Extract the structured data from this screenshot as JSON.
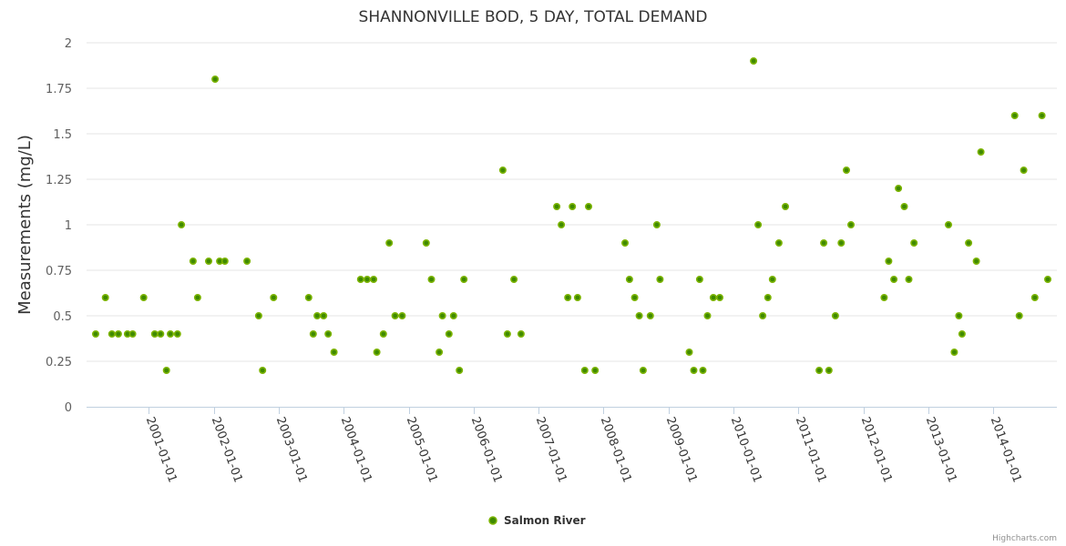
{
  "chart_data": {
    "type": "scatter",
    "title": "SHANNONVILLE BOD, 5 DAY, TOTAL DEMAND",
    "xlabel": "",
    "ylabel": "Measurements (mg/L)",
    "x_type": "datetime (decimal year)",
    "xlim": [
      2000.04,
      2014.98
    ],
    "ylim": [
      0,
      2
    ],
    "yticks": [
      {
        "value": 0,
        "label": "0"
      },
      {
        "value": 0.25,
        "label": "0.25"
      },
      {
        "value": 0.5,
        "label": "0.5"
      },
      {
        "value": 0.75,
        "label": "0.75"
      },
      {
        "value": 1,
        "label": "1"
      },
      {
        "value": 1.25,
        "label": "1.25"
      },
      {
        "value": 1.5,
        "label": "1.5"
      },
      {
        "value": 1.75,
        "label": "1.75"
      },
      {
        "value": 2,
        "label": "2"
      }
    ],
    "xticks": [
      {
        "value": 2001,
        "label": "2001-01-01"
      },
      {
        "value": 2002,
        "label": "2002-01-01"
      },
      {
        "value": 2003,
        "label": "2003-01-01"
      },
      {
        "value": 2004,
        "label": "2004-01-01"
      },
      {
        "value": 2005,
        "label": "2005-01-01"
      },
      {
        "value": 2006,
        "label": "2006-01-01"
      },
      {
        "value": 2007,
        "label": "2007-01-01"
      },
      {
        "value": 2008,
        "label": "2008-01-01"
      },
      {
        "value": 2009,
        "label": "2009-01-01"
      },
      {
        "value": 2010,
        "label": "2010-01-01"
      },
      {
        "value": 2011,
        "label": "2011-01-01"
      },
      {
        "value": 2012,
        "label": "2012-01-01"
      },
      {
        "value": 2013,
        "label": "2013-01-01"
      },
      {
        "value": 2014,
        "label": "2014-01-01"
      }
    ],
    "grid": "horizontal",
    "legend_position": "bottom-center",
    "series": [
      {
        "name": "Salmon River",
        "color": "#7cb400",
        "center_color": "#3f8a00",
        "points": [
          [
            2000.18,
            0.4
          ],
          [
            2000.33,
            0.6
          ],
          [
            2000.43,
            0.4
          ],
          [
            2000.53,
            0.4
          ],
          [
            2000.67,
            0.4
          ],
          [
            2000.75,
            0.4
          ],
          [
            2000.92,
            0.6
          ],
          [
            2001.09,
            0.4
          ],
          [
            2001.18,
            0.4
          ],
          [
            2001.27,
            0.2
          ],
          [
            2001.33,
            0.4
          ],
          [
            2001.44,
            0.4
          ],
          [
            2001.5,
            1.0
          ],
          [
            2001.68,
            0.8
          ],
          [
            2001.75,
            0.6
          ],
          [
            2001.92,
            0.8
          ],
          [
            2002.02,
            1.8
          ],
          [
            2002.09,
            0.8
          ],
          [
            2002.17,
            0.8
          ],
          [
            2002.51,
            0.8
          ],
          [
            2002.69,
            0.5
          ],
          [
            2002.75,
            0.2
          ],
          [
            2002.92,
            0.6
          ],
          [
            2003.46,
            0.6
          ],
          [
            2003.53,
            0.4
          ],
          [
            2003.59,
            0.5
          ],
          [
            2003.69,
            0.5
          ],
          [
            2003.76,
            0.4
          ],
          [
            2003.85,
            0.3
          ],
          [
            2004.26,
            0.7
          ],
          [
            2004.36,
            0.7
          ],
          [
            2004.46,
            0.7
          ],
          [
            2004.51,
            0.3
          ],
          [
            2004.61,
            0.4
          ],
          [
            2004.7,
            0.9
          ],
          [
            2004.79,
            0.5
          ],
          [
            2004.9,
            0.5
          ],
          [
            2005.27,
            0.9
          ],
          [
            2005.35,
            0.7
          ],
          [
            2005.47,
            0.3
          ],
          [
            2005.52,
            0.5
          ],
          [
            2005.62,
            0.4
          ],
          [
            2005.69,
            0.5
          ],
          [
            2005.78,
            0.2
          ],
          [
            2005.85,
            0.7
          ],
          [
            2006.45,
            1.3
          ],
          [
            2006.52,
            0.4
          ],
          [
            2006.62,
            0.7
          ],
          [
            2006.73,
            0.4
          ],
          [
            2007.28,
            1.1
          ],
          [
            2007.35,
            1.0
          ],
          [
            2007.45,
            0.6
          ],
          [
            2007.52,
            1.1
          ],
          [
            2007.6,
            0.6
          ],
          [
            2007.71,
            0.2
          ],
          [
            2007.77,
            1.1
          ],
          [
            2007.87,
            0.2
          ],
          [
            2008.33,
            0.9
          ],
          [
            2008.4,
            0.7
          ],
          [
            2008.48,
            0.6
          ],
          [
            2008.55,
            0.5
          ],
          [
            2008.61,
            0.2
          ],
          [
            2008.72,
            0.5
          ],
          [
            2008.82,
            1.0
          ],
          [
            2008.87,
            0.7
          ],
          [
            2009.32,
            0.3
          ],
          [
            2009.39,
            0.2
          ],
          [
            2009.48,
            0.7
          ],
          [
            2009.53,
            0.2
          ],
          [
            2009.6,
            0.5
          ],
          [
            2009.69,
            0.6
          ],
          [
            2009.79,
            0.6
          ],
          [
            2010.31,
            1.9
          ],
          [
            2010.38,
            1.0
          ],
          [
            2010.45,
            0.5
          ],
          [
            2010.53,
            0.6
          ],
          [
            2010.6,
            0.7
          ],
          [
            2010.7,
            0.9
          ],
          [
            2010.8,
            1.1
          ],
          [
            2011.32,
            0.2
          ],
          [
            2011.39,
            0.9
          ],
          [
            2011.47,
            0.2
          ],
          [
            2011.57,
            0.5
          ],
          [
            2011.66,
            0.9
          ],
          [
            2011.74,
            1.3
          ],
          [
            2011.81,
            1.0
          ],
          [
            2012.32,
            0.6
          ],
          [
            2012.39,
            0.8
          ],
          [
            2012.47,
            0.7
          ],
          [
            2012.54,
            1.2
          ],
          [
            2012.63,
            1.1
          ],
          [
            2012.7,
            0.7
          ],
          [
            2012.78,
            0.9
          ],
          [
            2013.31,
            1.0
          ],
          [
            2013.4,
            0.3
          ],
          [
            2013.47,
            0.5
          ],
          [
            2013.52,
            0.4
          ],
          [
            2013.62,
            0.9
          ],
          [
            2013.74,
            0.8
          ],
          [
            2013.81,
            1.4
          ],
          [
            2014.33,
            1.6
          ],
          [
            2014.4,
            0.5
          ],
          [
            2014.47,
            1.3
          ],
          [
            2014.64,
            0.6
          ],
          [
            2014.75,
            1.6
          ],
          [
            2014.84,
            0.7
          ]
        ]
      }
    ]
  },
  "credits": "Highcharts.com",
  "colors": {
    "grid": "#e6e6e6",
    "axis_line": "#c0d0e0"
  }
}
